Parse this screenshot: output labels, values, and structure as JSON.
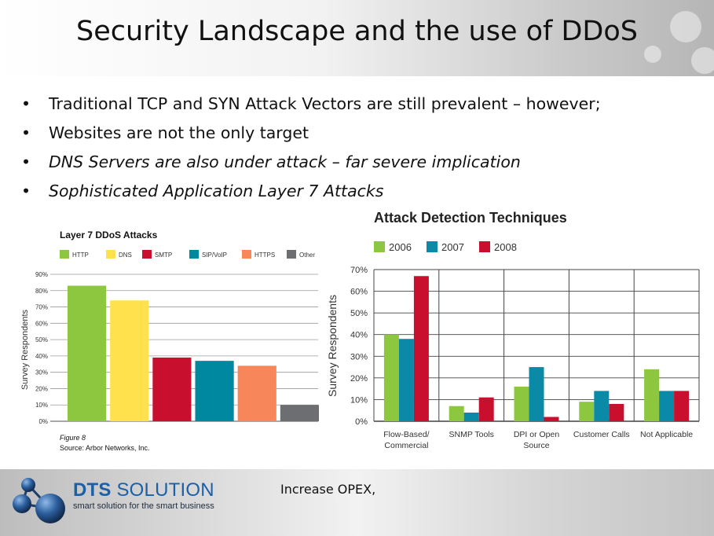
{
  "slide": {
    "title": "Security Landscape and the use of DDoS",
    "bullets": [
      {
        "text": "Traditional TCP and SYN Attack Vectors are still prevalent – however;",
        "italic": false
      },
      {
        "text": "Websites are not the only target",
        "italic": false
      },
      {
        "text": "DNS Servers are also under attack – far severe implication",
        "italic": true
      },
      {
        "text": "Sophisticated Application Layer 7 Attacks",
        "italic": true
      }
    ],
    "bullet_glyph": "•",
    "footer_note": "Increase OPEX,"
  },
  "brand": {
    "name_bold": "DTS",
    "name_rest": " SOLUTION",
    "tagline": "smart solution for the smart business",
    "colors": {
      "primary": "#1a5fa8",
      "logo_dark": "#1f3d6b"
    }
  },
  "chart_data": [
    {
      "type": "bar",
      "title": "Layer 7 DDoS Attacks",
      "categories": [
        "HTTP",
        "DNS",
        "SMTP",
        "SIP/VoIP",
        "HTTPS",
        "Other"
      ],
      "values": [
        83,
        74,
        39,
        37,
        34,
        10
      ],
      "colors": [
        "#8dc63f",
        "#ffe14d",
        "#c8102e",
        "#0088a0",
        "#f7875a",
        "#6d6e71"
      ],
      "ylabel": "Survey Respondents",
      "ylim": [
        0,
        90
      ],
      "yticks": [
        "0%",
        "10%",
        "20%",
        "30%",
        "40%",
        "50%",
        "60%",
        "70%",
        "80%",
        "90%"
      ],
      "grid": true,
      "legend": "top",
      "caption": "Figure 8",
      "source": "Source: Arbor Networks, Inc."
    },
    {
      "type": "bar",
      "title": "Attack Detection Techniques",
      "categories": [
        [
          "Flow-Based/",
          "Commercial"
        ],
        [
          "SNMP Tools"
        ],
        [
          "DPI or Open",
          "Source"
        ],
        [
          "Customer Calls"
        ],
        [
          "Not Applicable"
        ]
      ],
      "series": [
        {
          "name": "2006",
          "color": "#8dc63f",
          "values": [
            40,
            7,
            16,
            9,
            24
          ]
        },
        {
          "name": "2007",
          "color": "#0a8aa6",
          "values": [
            38,
            4,
            25,
            14,
            14
          ]
        },
        {
          "name": "2008",
          "color": "#c8102e",
          "values": [
            67,
            11,
            2,
            8,
            14
          ]
        }
      ],
      "ylabel": "Survey Respondents",
      "ylim": [
        0,
        70
      ],
      "yticks": [
        "0%",
        "10%",
        "20%",
        "30%",
        "40%",
        "50%",
        "60%",
        "70%"
      ],
      "grid": true,
      "legend": "top"
    }
  ]
}
